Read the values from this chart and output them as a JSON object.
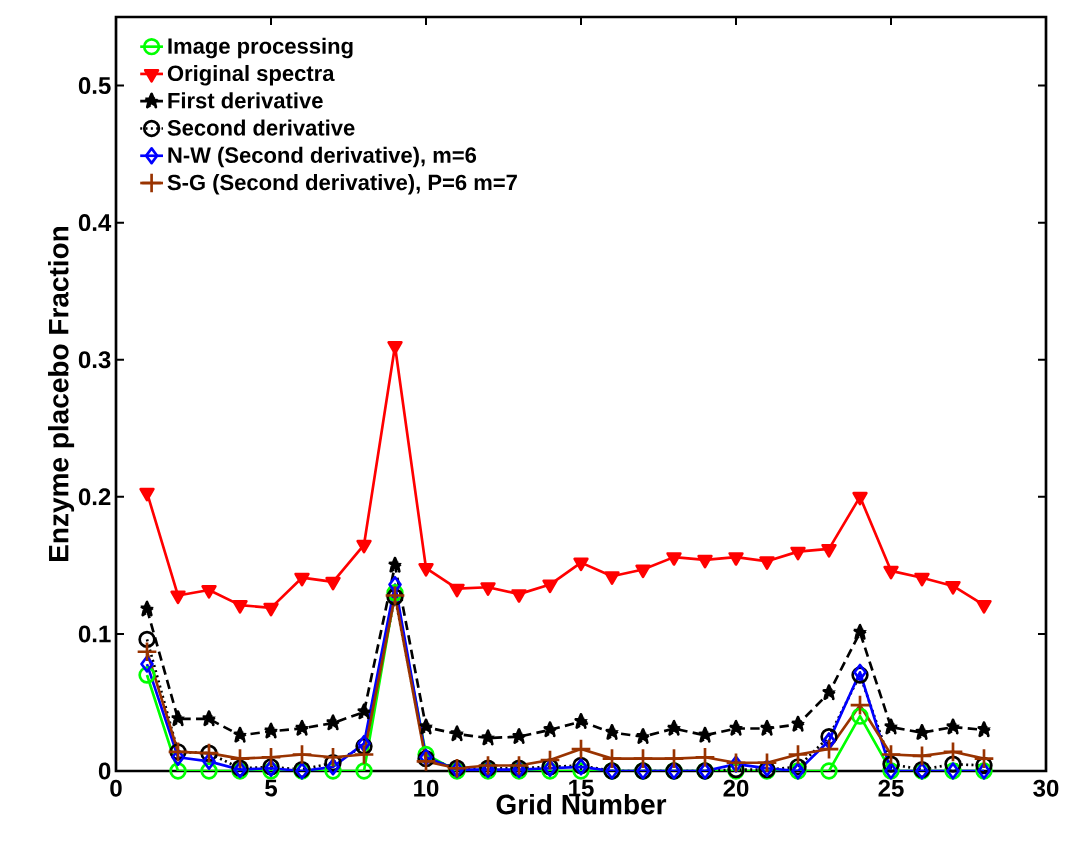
{
  "chart_data": {
    "type": "line",
    "xlabel": "Grid Number",
    "ylabel": "Enzyme placebo Fraction",
    "x": [
      1,
      2,
      3,
      4,
      5,
      6,
      7,
      8,
      9,
      10,
      11,
      12,
      13,
      14,
      15,
      16,
      17,
      18,
      19,
      20,
      21,
      22,
      23,
      24,
      25,
      26,
      27,
      28
    ],
    "xlim": [
      0,
      30
    ],
    "ylim": [
      0,
      0.55
    ],
    "xticks": [
      0,
      5,
      10,
      15,
      20,
      25,
      30
    ],
    "yticks": [
      0,
      0.1,
      0.2,
      0.3,
      0.4,
      0.5
    ],
    "legend": "top left",
    "grid": false,
    "series": [
      {
        "name": "Image processing",
        "color": "#00ff00",
        "marker": "circle",
        "line_style": "solid",
        "values": [
          0.07,
          0,
          0,
          0,
          0,
          0,
          0,
          0,
          0.13,
          0.012,
          0,
          0,
          0,
          0,
          0,
          0,
          0,
          0,
          0,
          0,
          0,
          0,
          0,
          0.04,
          0,
          0,
          0,
          0
        ]
      },
      {
        "name": "Original spectra",
        "color": "#ff0000",
        "marker": "triangle",
        "line_style": "solid",
        "values": [
          0.203,
          0.128,
          0.132,
          0.121,
          0.119,
          0.141,
          0.138,
          0.165,
          0.31,
          0.148,
          0.133,
          0.134,
          0.129,
          0.136,
          0.152,
          0.142,
          0.147,
          0.156,
          0.154,
          0.156,
          0.153,
          0.16,
          0.162,
          0.2,
          0.146,
          0.141,
          0.135,
          0.121
        ]
      },
      {
        "name": "First derivative",
        "color": "#000000",
        "marker": "star",
        "line_style": "dashed",
        "values": [
          0.118,
          0.038,
          0.038,
          0.026,
          0.029,
          0.031,
          0.035,
          0.043,
          0.15,
          0.032,
          0.027,
          0.024,
          0.025,
          0.03,
          0.036,
          0.028,
          0.025,
          0.031,
          0.026,
          0.031,
          0.031,
          0.034,
          0.057,
          0.101,
          0.032,
          0.028,
          0.032,
          0.03
        ]
      },
      {
        "name": "Second derivative",
        "color": "#000000",
        "marker": "circle",
        "line_style": "dotted",
        "values": [
          0.096,
          0.014,
          0.013,
          0.002,
          0.003,
          0.001,
          0.006,
          0.018,
          0.127,
          0.009,
          0.002,
          0.002,
          0.002,
          0.003,
          0.004,
          0,
          0,
          0,
          0,
          0.001,
          0.001,
          0.003,
          0.025,
          0.07,
          0.005,
          0.001,
          0.005,
          0.004
        ]
      },
      {
        "name": "N-W (Second derivative), m=6",
        "color": "#0000ff",
        "marker": "diamond",
        "line_style": "solid",
        "values": [
          0.078,
          0.01,
          0.007,
          0.001,
          0.002,
          0,
          0.003,
          0.02,
          0.136,
          0.01,
          0.001,
          0.001,
          0.001,
          0.002,
          0.003,
          0,
          0,
          0,
          0,
          0.005,
          0.002,
          0,
          0.022,
          0.072,
          0,
          0,
          0,
          0
        ]
      },
      {
        "name": "S-G (Second derivative), P=6 m=7",
        "color": "#993300",
        "marker": "cross",
        "line_style": "solid",
        "values": [
          0.087,
          0.014,
          0.013,
          0.009,
          0.01,
          0.012,
          0.01,
          0.012,
          0.128,
          0.007,
          0.002,
          0.004,
          0.004,
          0.008,
          0.016,
          0.009,
          0.009,
          0.009,
          0.01,
          0.006,
          0.006,
          0.012,
          0.016,
          0.048,
          0.012,
          0.011,
          0.014,
          0.009
        ]
      }
    ]
  }
}
